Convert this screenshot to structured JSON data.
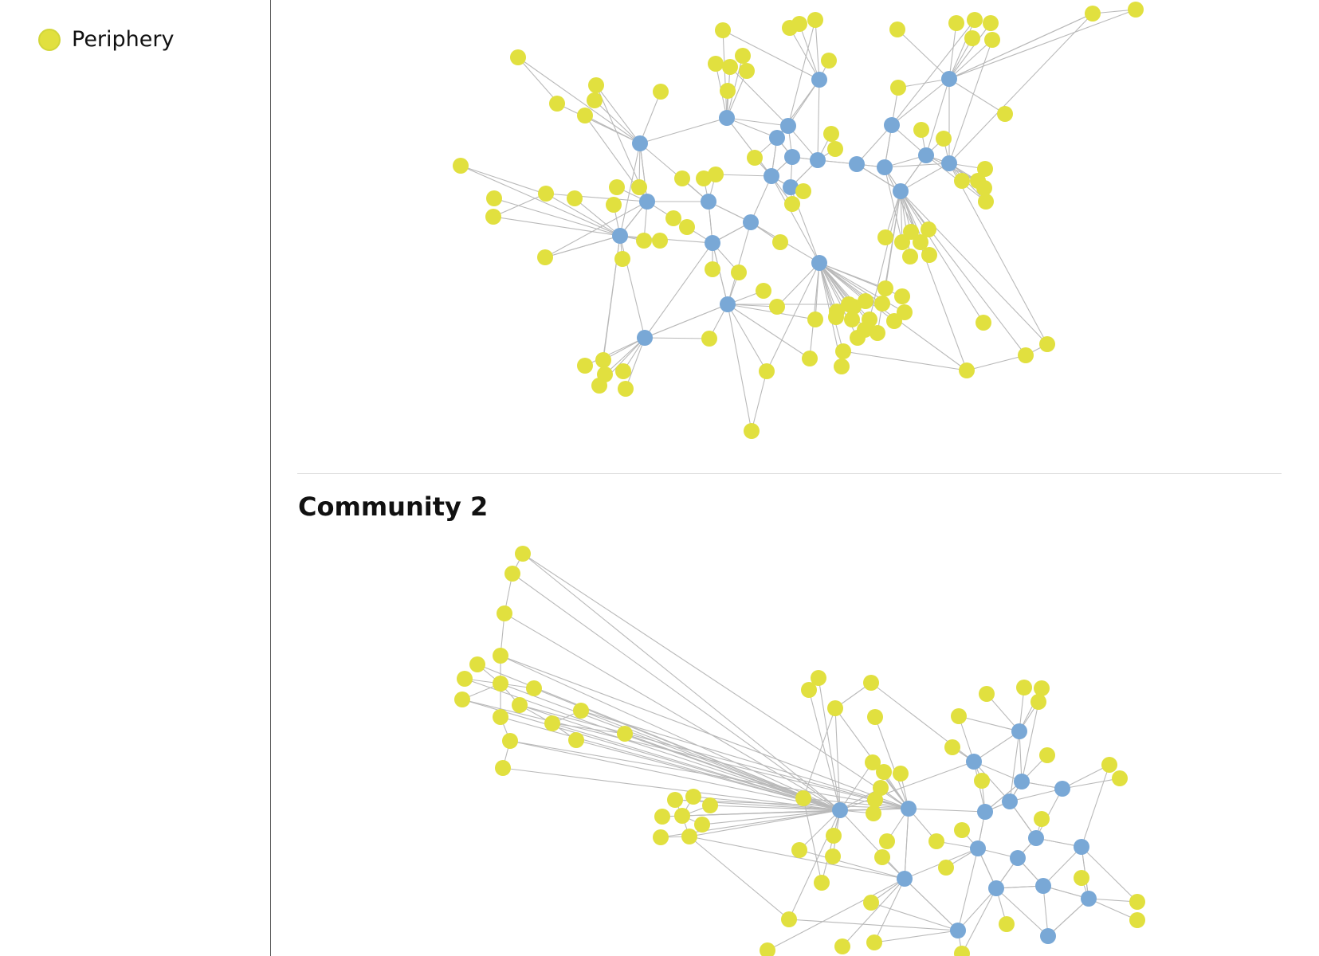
{
  "legend": {
    "items": [
      {
        "label": "Periphery",
        "color": "#e1e03f"
      }
    ]
  },
  "colors": {
    "core": "#79a8d6",
    "periphery": "#e1e03f",
    "edge": "#b9b9b9"
  },
  "sections": [
    {
      "title": ""
    },
    {
      "title": "Community 2"
    }
  ]
}
